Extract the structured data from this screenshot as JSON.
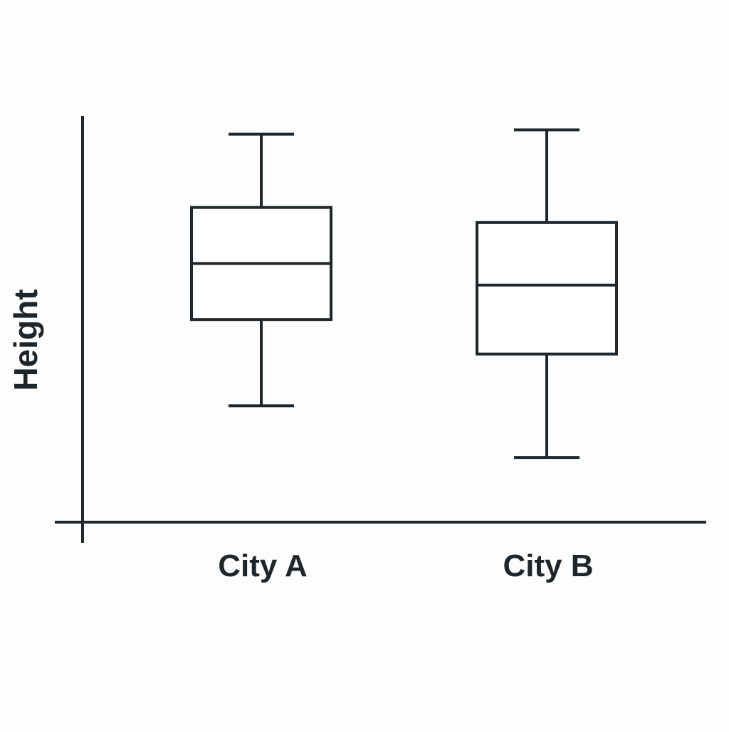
{
  "chart_data": {
    "type": "box",
    "title": "",
    "xlabel": "",
    "ylabel": "Height",
    "ylim": [
      0,
      10
    ],
    "grid": false,
    "legend": "none",
    "colors": {
      "ink": "#1f262b",
      "box_fill": "#ffffff",
      "background": "#fdfdfd"
    },
    "categories": [
      "City A",
      "City B"
    ],
    "series": [
      {
        "category": "City A",
        "min": 2.7,
        "q1": 4.7,
        "median": 6.0,
        "q3": 7.3,
        "max": 9.0
      },
      {
        "category": "City B",
        "min": 1.5,
        "q1": 3.9,
        "median": 5.5,
        "q3": 6.95,
        "max": 9.1
      }
    ]
  }
}
